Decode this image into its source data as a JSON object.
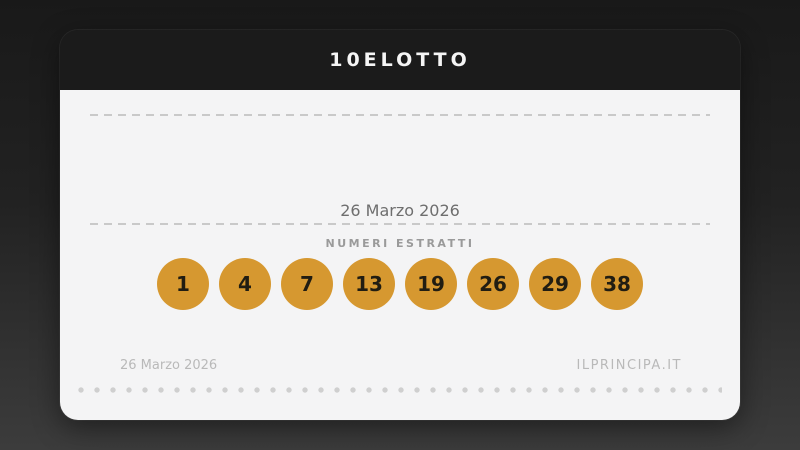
{
  "card": {
    "header": {
      "title": "10ELOTTO"
    },
    "draw_date": "26 Marzo 2026",
    "numbers_label": "NUMERI ESTRATTI",
    "numbers": [
      1,
      4,
      7,
      13,
      19,
      26,
      29,
      38
    ],
    "footer": {
      "date": "26 Marzo 2026",
      "site": "ILPRINCIPA.IT"
    },
    "colors": {
      "ball_bg": "#d69830",
      "ball_text": "#211d12",
      "header_bg": "#1b1b1b",
      "body_bg": "#f4f4f5"
    }
  }
}
